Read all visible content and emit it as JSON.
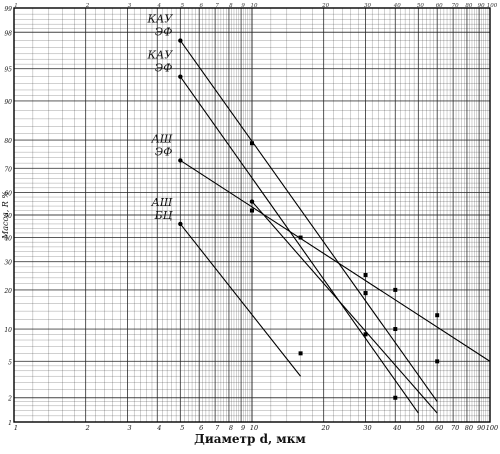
{
  "chart_data": {
    "type": "line",
    "title": "",
    "xlabel": "Диаметр d, мкм",
    "ylabel": "Масса, R %",
    "xscale": "log",
    "yscale": "probability",
    "xlim": [
      1,
      100
    ],
    "ylim": [
      1,
      99
    ],
    "grid": true,
    "x_tick_labels": [
      {
        "x": 1,
        "label": "1"
      },
      {
        "x": 2,
        "label": "2"
      },
      {
        "x": 3,
        "label": "3"
      },
      {
        "x": 4,
        "label": "4"
      },
      {
        "x": 5,
        "label": "5"
      },
      {
        "x": 6,
        "label": "6"
      },
      {
        "x": 7,
        "label": "7"
      },
      {
        "x": 8,
        "label": "8"
      },
      {
        "x": 9,
        "label": "9"
      },
      {
        "x": 10,
        "label": "10"
      },
      {
        "x": 20,
        "label": "20"
      },
      {
        "x": 30,
        "label": "30"
      },
      {
        "x": 40,
        "label": "40"
      },
      {
        "x": 50,
        "label": "50"
      },
      {
        "x": 60,
        "label": "60"
      },
      {
        "x": 70,
        "label": "70"
      },
      {
        "x": 80,
        "label": "80"
      },
      {
        "x": 90,
        "label": "90"
      },
      {
        "x": 100,
        "label": "100"
      }
    ],
    "y_tick_labels": [
      {
        "y": 1,
        "label": "1"
      },
      {
        "y": 2,
        "label": "2"
      },
      {
        "y": 5,
        "label": "5"
      },
      {
        "y": 10,
        "label": "10"
      },
      {
        "y": 20,
        "label": "20"
      },
      {
        "y": 30,
        "label": "30"
      },
      {
        "y": 40,
        "label": "40"
      },
      {
        "y": 50,
        "label": "50"
      },
      {
        "y": 60,
        "label": "60"
      },
      {
        "y": 70,
        "label": "70"
      },
      {
        "y": 80,
        "label": "80"
      },
      {
        "y": 90,
        "label": "90"
      },
      {
        "y": 95,
        "label": "95"
      },
      {
        "y": 98,
        "label": "98"
      },
      {
        "y": 99,
        "label": "99"
      }
    ],
    "series": [
      {
        "name": "КАУ ЭФ",
        "label_lines": [
          "КАУ",
          "ЭФ"
        ],
        "line": [
          [
            5,
            97.5
          ],
          [
            60,
            1.8
          ]
        ],
        "points": [
          [
            10,
            79
          ],
          [
            16,
            40
          ],
          [
            30,
            19
          ],
          [
            60,
            5
          ]
        ]
      },
      {
        "name": "КАУ ЭФ",
        "label_lines": [
          "КАУ",
          "ЭФ"
        ],
        "line": [
          [
            5,
            94
          ],
          [
            50,
            1.3
          ]
        ],
        "points": [
          [
            30,
            9
          ],
          [
            40,
            2
          ]
        ]
      },
      {
        "name": "АШ ЭФ",
        "label_lines": [
          "АШ",
          "ЭФ"
        ],
        "line": [
          [
            5,
            73
          ],
          [
            100,
            5
          ]
        ],
        "points": [
          [
            10,
            52
          ],
          [
            30,
            25
          ],
          [
            40,
            20
          ]
        ]
      },
      {
        "name": "АШ БЦ",
        "label_lines": [
          "АШ",
          "БЦ"
        ],
        "line": [
          [
            5,
            46
          ],
          [
            16,
            3.5
          ]
        ],
        "points": [
          [
            16,
            6
          ]
        ]
      },
      {
        "name": "",
        "label_lines": [],
        "line": [
          [
            10,
            56
          ],
          [
            60,
            1.3
          ]
        ],
        "points": [
          [
            30,
            19
          ],
          [
            40,
            10
          ],
          [
            60,
            13
          ]
        ]
      }
    ]
  }
}
